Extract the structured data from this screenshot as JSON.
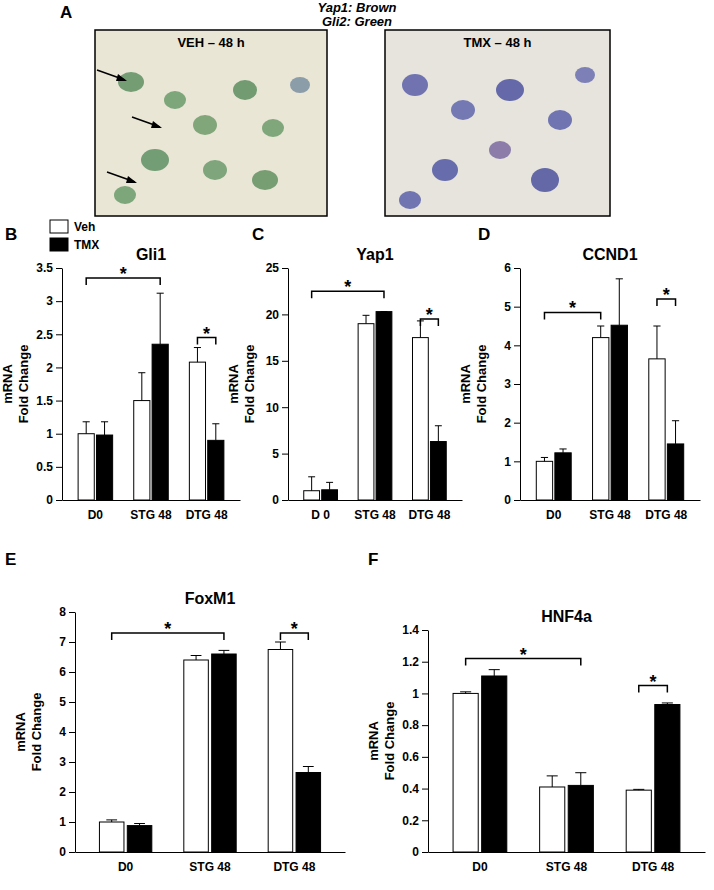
{
  "panel_a": {
    "label": "A",
    "stain_key": [
      "Yap1: Brown",
      "Gli2: Green"
    ],
    "images": [
      {
        "title": "VEH – 48 h"
      },
      {
        "title": "TMX – 48 h"
      }
    ]
  },
  "chart_data": [
    {
      "type": "bar",
      "panel_label": "B",
      "title": "Gli1",
      "y_label": "mRNA\nFold Change",
      "categories": [
        "D0",
        "STG 48",
        "DTG 48"
      ],
      "series": [
        {
          "name": "Veh",
          "color": "#ffffff",
          "values": [
            1.0,
            1.5,
            2.08
          ],
          "errors": [
            0.18,
            0.42,
            0.22
          ]
        },
        {
          "name": "TMX",
          "color": "#000000",
          "values": [
            0.98,
            2.35,
            0.9
          ],
          "errors": [
            0.2,
            0.77,
            0.25
          ]
        }
      ],
      "ylim": [
        0,
        3.5
      ],
      "yticks": [
        0,
        0.5,
        1,
        1.5,
        2,
        2.5,
        3,
        3.5
      ],
      "legend": "top-left",
      "brackets": [
        {
          "text": "*",
          "from": [
            0,
            0
          ],
          "to": [
            1,
            1
          ],
          "y": 3.35
        },
        {
          "text": "*",
          "from": [
            2,
            0
          ],
          "to": [
            2,
            1
          ],
          "y": 2.45
        }
      ]
    },
    {
      "type": "bar",
      "panel_label": "C",
      "title": "Yap1",
      "y_label": "mRNA\nFold Change",
      "categories": [
        "D 0",
        "STG 48",
        "DTG 48"
      ],
      "series": [
        {
          "name": "Veh",
          "color": "#ffffff",
          "values": [
            1.0,
            19.0,
            17.5
          ],
          "errors": [
            1.5,
            0.9,
            1.8
          ]
        },
        {
          "name": "TMX",
          "color": "#000000",
          "values": [
            1.1,
            20.3,
            6.3
          ],
          "errors": [
            0.8,
            0,
            1.7
          ]
        }
      ],
      "ylim": [
        0,
        25
      ],
      "yticks": [
        0,
        5,
        10,
        15,
        20,
        25
      ],
      "brackets": [
        {
          "text": "*",
          "from": [
            0,
            0
          ],
          "to": [
            1,
            1
          ],
          "y": 22.5
        },
        {
          "text": "*",
          "from": [
            2,
            0
          ],
          "to": [
            2,
            1
          ],
          "y": 19.5
        }
      ]
    },
    {
      "type": "bar",
      "panel_label": "D",
      "title": "CCND1",
      "y_label": "mRNA\nFold Change",
      "categories": [
        "D0",
        "STG 48",
        "DTG 48"
      ],
      "series": [
        {
          "name": "Veh",
          "color": "#ffffff",
          "values": [
            1.0,
            4.2,
            3.65
          ],
          "errors": [
            0.1,
            0.3,
            0.85
          ]
        },
        {
          "name": "TMX",
          "color": "#000000",
          "values": [
            1.22,
            4.52,
            1.45
          ],
          "errors": [
            0.1,
            1.2,
            0.6
          ]
        }
      ],
      "ylim": [
        0,
        6
      ],
      "yticks": [
        0,
        1,
        2,
        3,
        4,
        5,
        6
      ],
      "brackets": [
        {
          "text": "*",
          "from": [
            0,
            0
          ],
          "to": [
            1,
            0
          ],
          "y": 4.85
        },
        {
          "text": "*",
          "from": [
            2,
            0
          ],
          "to": [
            2,
            1
          ],
          "y": 5.2
        }
      ]
    },
    {
      "type": "bar",
      "panel_label": "E",
      "title": "FoxM1",
      "y_label": "mRNA\nFold Change",
      "categories": [
        "D0",
        "STG 48",
        "DTG 48"
      ],
      "series": [
        {
          "name": "Veh",
          "color": "#ffffff",
          "values": [
            1.0,
            6.4,
            6.75
          ],
          "errors": [
            0.07,
            0.15,
            0.25
          ]
        },
        {
          "name": "TMX",
          "color": "#000000",
          "values": [
            0.88,
            6.6,
            2.65
          ],
          "errors": [
            0.07,
            0.12,
            0.2
          ]
        }
      ],
      "ylim": [
        0,
        8
      ],
      "yticks": [
        0,
        1,
        2,
        3,
        4,
        5,
        6,
        7,
        8
      ],
      "brackets": [
        {
          "text": "*",
          "from": [
            0,
            0
          ],
          "to": [
            1,
            1
          ],
          "y": 7.3
        },
        {
          "text": "*",
          "from": [
            2,
            0
          ],
          "to": [
            2,
            1
          ],
          "y": 7.3
        }
      ]
    },
    {
      "type": "bar",
      "panel_label": "F",
      "title": "HNF4a",
      "y_label": "mRNA\nFold Change",
      "categories": [
        "D0",
        "STG 48",
        "DTG 48"
      ],
      "series": [
        {
          "name": "Veh",
          "color": "#ffffff",
          "values": [
            1.0,
            0.41,
            0.39
          ],
          "errors": [
            0.01,
            0.07,
            0.005
          ]
        },
        {
          "name": "TMX",
          "color": "#000000",
          "values": [
            1.11,
            0.42,
            0.93
          ],
          "errors": [
            0.04,
            0.08,
            0.01
          ]
        }
      ],
      "ylim": [
        0,
        1.4
      ],
      "yticks": [
        0,
        0.2,
        0.4,
        0.6,
        0.8,
        1,
        1.2,
        1.4
      ],
      "brackets": [
        {
          "text": "*",
          "from": [
            0,
            0
          ],
          "to": [
            1,
            1
          ],
          "y": 1.22
        },
        {
          "text": "*",
          "from": [
            2,
            0
          ],
          "to": [
            2,
            1
          ],
          "y": 1.05
        }
      ]
    }
  ]
}
